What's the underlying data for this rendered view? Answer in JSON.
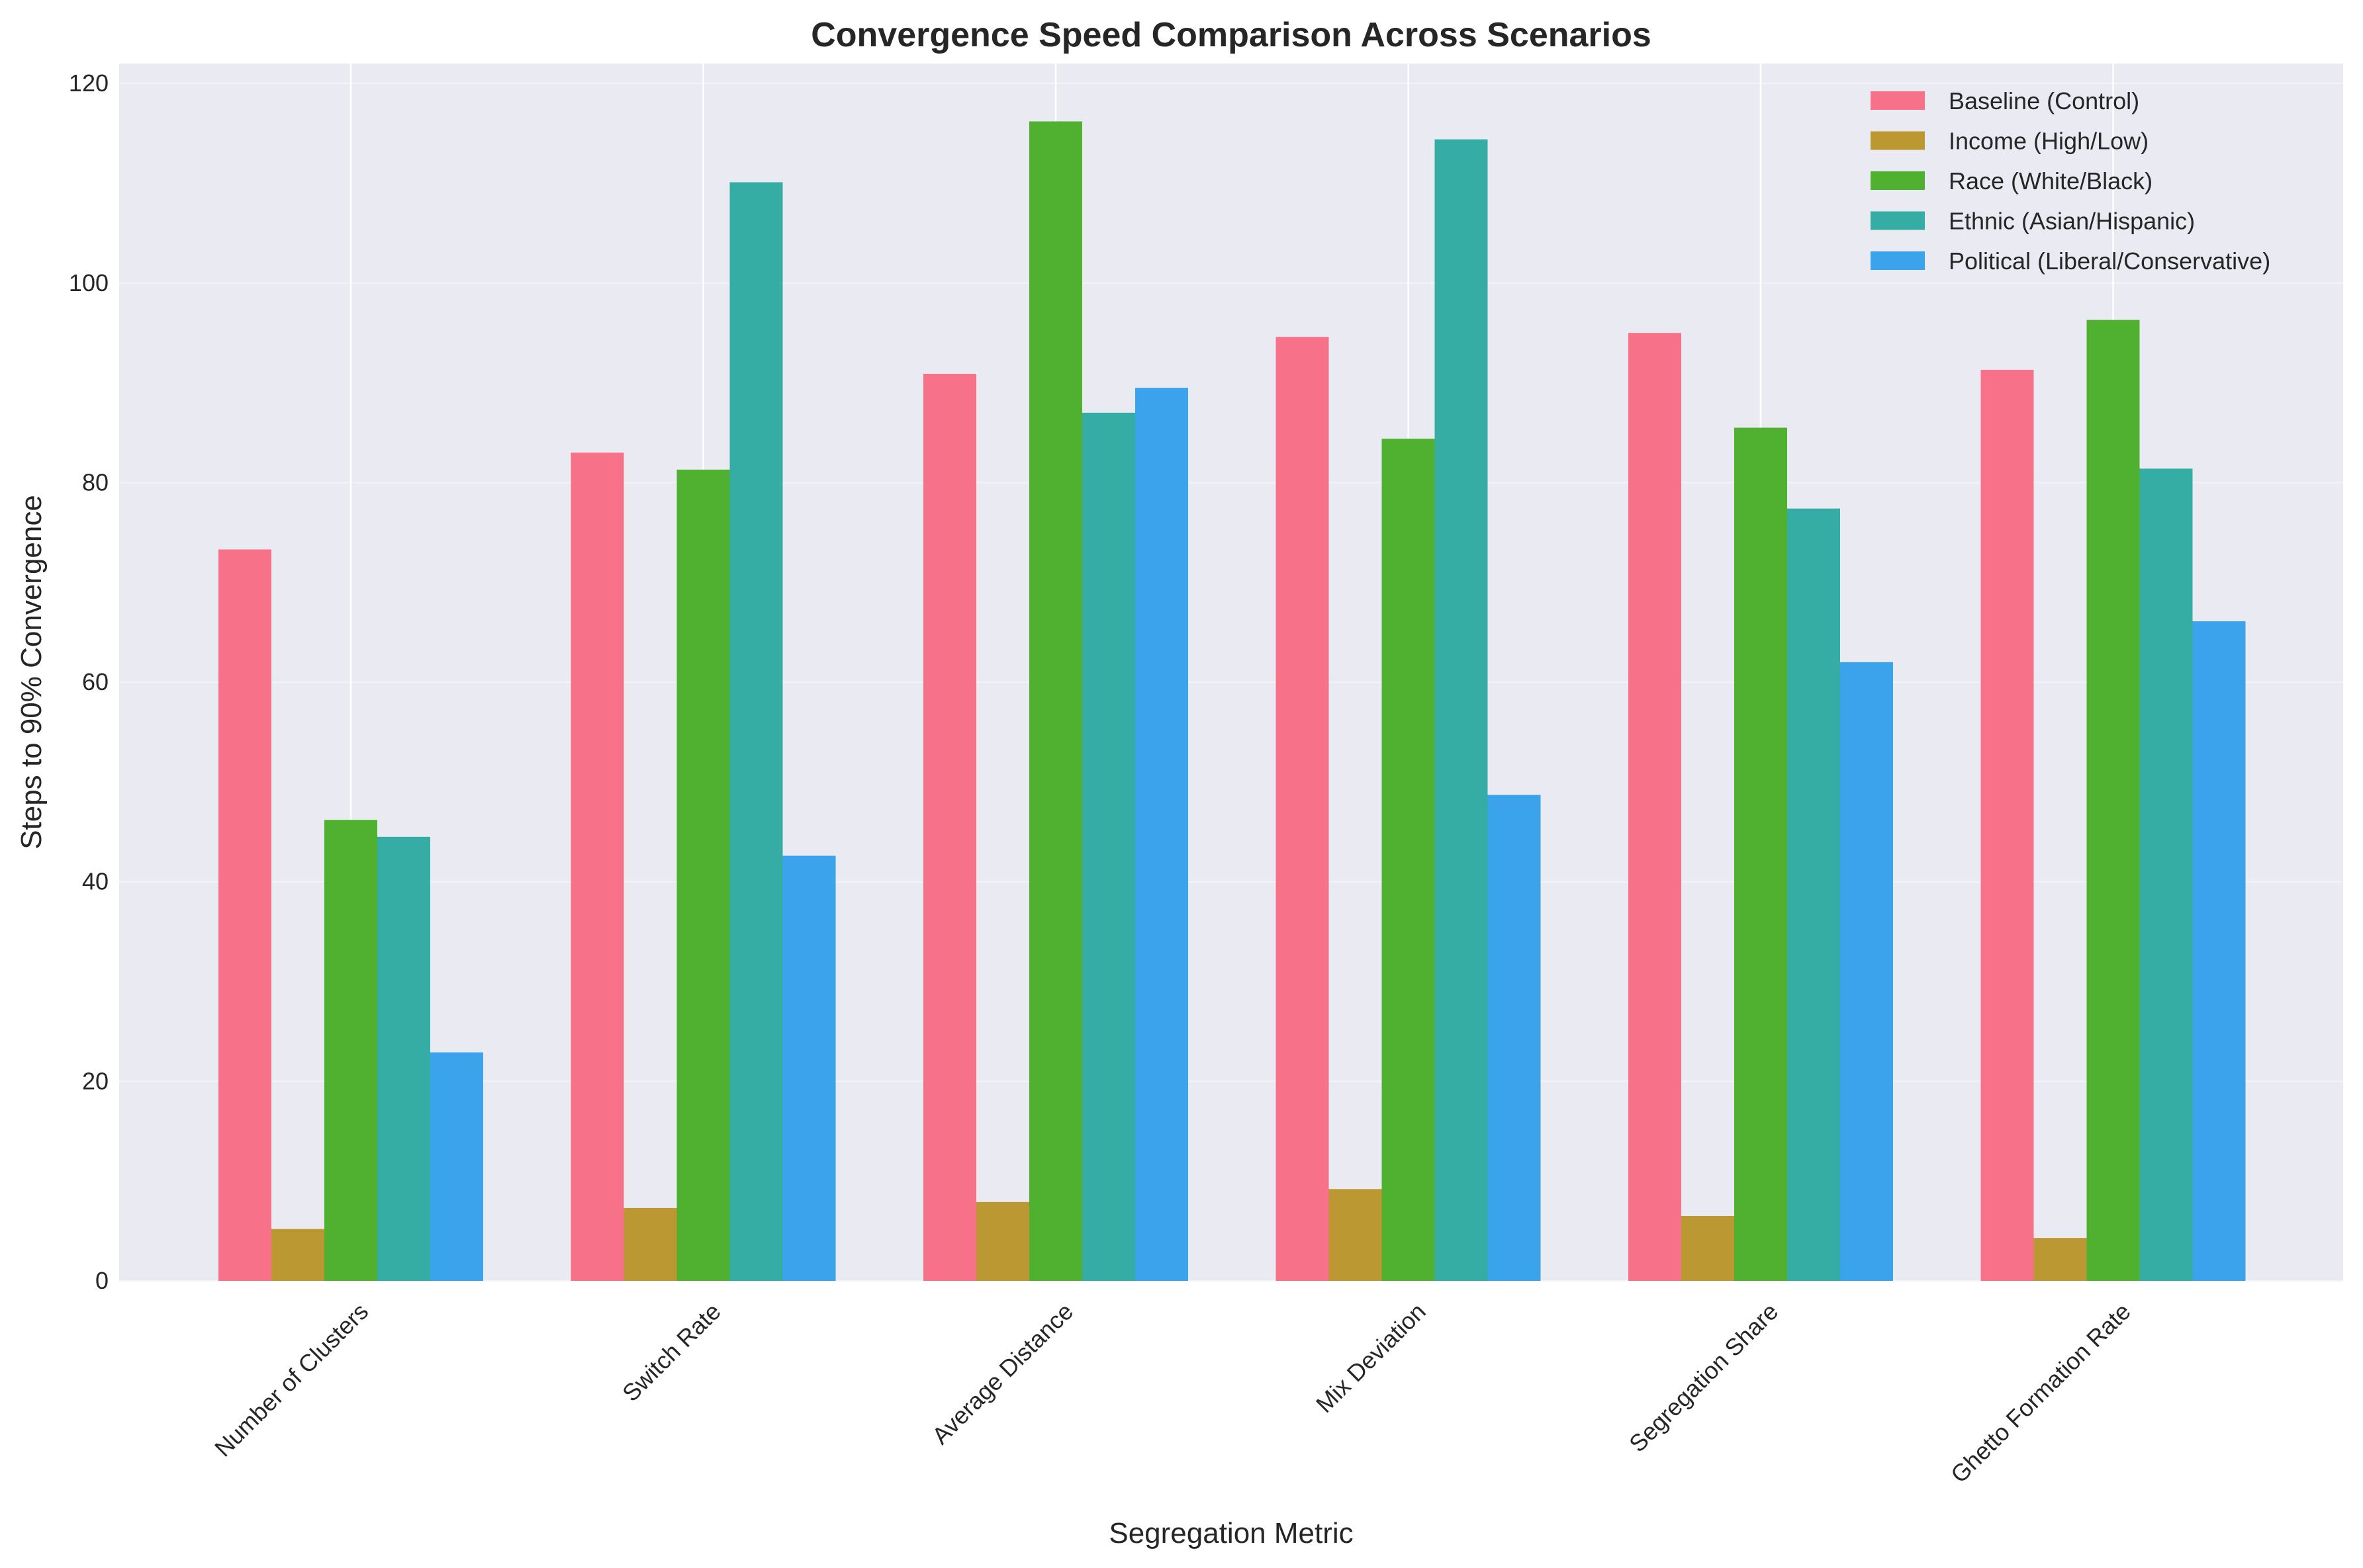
{
  "chart_data": {
    "type": "bar",
    "title": "Convergence Speed Comparison Across Scenarios",
    "xlabel": "Segregation Metric",
    "ylabel": "Steps to 90% Convergence",
    "ylim": [
      0,
      122
    ],
    "yticks": [
      0,
      20,
      40,
      60,
      80,
      100,
      120
    ],
    "grid": true,
    "legend_position": "top-right",
    "categories": [
      "Number of Clusters",
      "Switch Rate",
      "Average Distance",
      "Mix Deviation",
      "Segregation Share",
      "Ghetto Formation Rate"
    ],
    "series": [
      {
        "name": "Baseline (Control)",
        "color": "#f77189",
        "values": [
          73.3,
          83.0,
          90.9,
          94.6,
          95.0,
          91.3
        ]
      },
      {
        "name": "Income (High/Low)",
        "color": "#bb9832",
        "values": [
          5.2,
          7.3,
          7.9,
          9.2,
          6.5,
          4.3
        ]
      },
      {
        "name": "Race (White/Black)",
        "color": "#50b131",
        "values": [
          46.2,
          81.3,
          116.2,
          84.4,
          85.5,
          96.3
        ]
      },
      {
        "name": "Ethnic (Asian/Hispanic)",
        "color": "#36ada4",
        "values": [
          44.5,
          110.1,
          87.0,
          114.4,
          77.4,
          81.4
        ]
      },
      {
        "name": "Political (Liberal/Conservative)",
        "color": "#3ba3ec",
        "values": [
          22.9,
          42.6,
          89.5,
          48.7,
          62.0,
          66.1
        ]
      }
    ]
  }
}
